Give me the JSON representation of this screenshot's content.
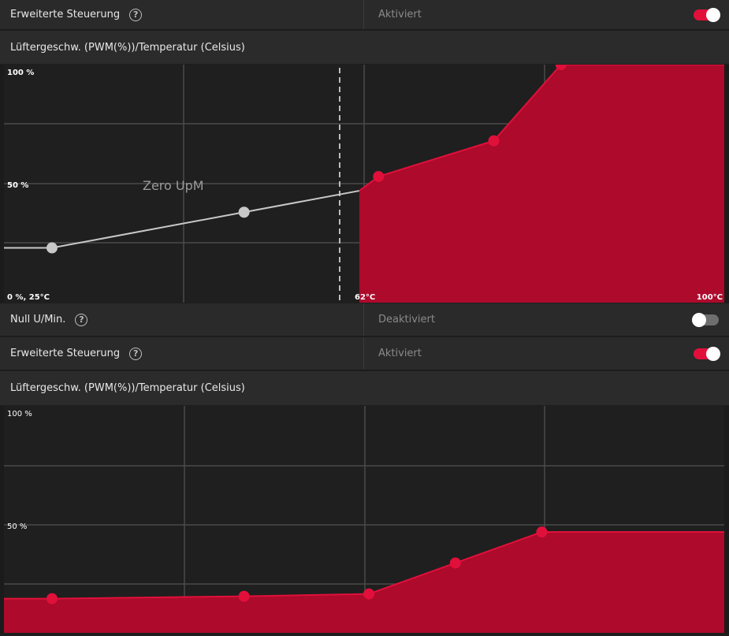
{
  "panel1": {
    "advanced": {
      "label": "Erweiterte Steuerung",
      "help": "?",
      "status": "Aktiviert",
      "toggle": "on"
    },
    "title": "Lüftergeschw. (PWM(%))/Temperatur (Celsius)",
    "chart": {
      "y_top": "100 %",
      "y_mid": "50 %",
      "origin": "0 %, 25°C",
      "zero_temp": "62°C",
      "max_temp": "100°C",
      "zero_label": "Zero UpM"
    }
  },
  "zero_rpm": {
    "label": "Null U/Min.",
    "help": "?",
    "status": "Deaktiviert",
    "toggle": "off"
  },
  "panel2": {
    "advanced": {
      "label": "Erweiterte Steuerung",
      "help": "?",
      "status": "Aktiviert",
      "toggle": "on"
    },
    "title": "Lüftergeschw. (PWM(%))/Temperatur (Celsius)",
    "chart": {
      "y_top": "100 %",
      "y_mid": "50 %"
    }
  },
  "colors": {
    "accent": "#e0103a",
    "fill": "#ad0a2c",
    "grey_point": "#c8c8c8"
  },
  "chart_data": [
    {
      "type": "area",
      "title": "Lüftergeschw. (PWM(%))/Temperatur (Celsius)",
      "xlabel": "Temperatur (Celsius)",
      "ylabel": "PWM (%)",
      "xlim": [
        25,
        100
      ],
      "ylim": [
        0,
        100
      ],
      "zero_rpm_threshold": 62,
      "zero_rpm_points": [
        {
          "x": 30,
          "y": 23
        },
        {
          "x": 50,
          "y": 38
        }
      ],
      "active_points": [
        {
          "x": 64,
          "y": 53
        },
        {
          "x": 76,
          "y": 68
        },
        {
          "x": 83,
          "y": 100
        }
      ]
    },
    {
      "type": "area",
      "title": "Lüftergeschw. (PWM(%))/Temperatur (Celsius)",
      "ylim": [
        0,
        100
      ],
      "points": [
        {
          "x": 30,
          "y": 19
        },
        {
          "x": 50,
          "y": 20
        },
        {
          "x": 63,
          "y": 21
        },
        {
          "x": 72,
          "y": 34
        },
        {
          "x": 81,
          "y": 47
        }
      ]
    }
  ]
}
